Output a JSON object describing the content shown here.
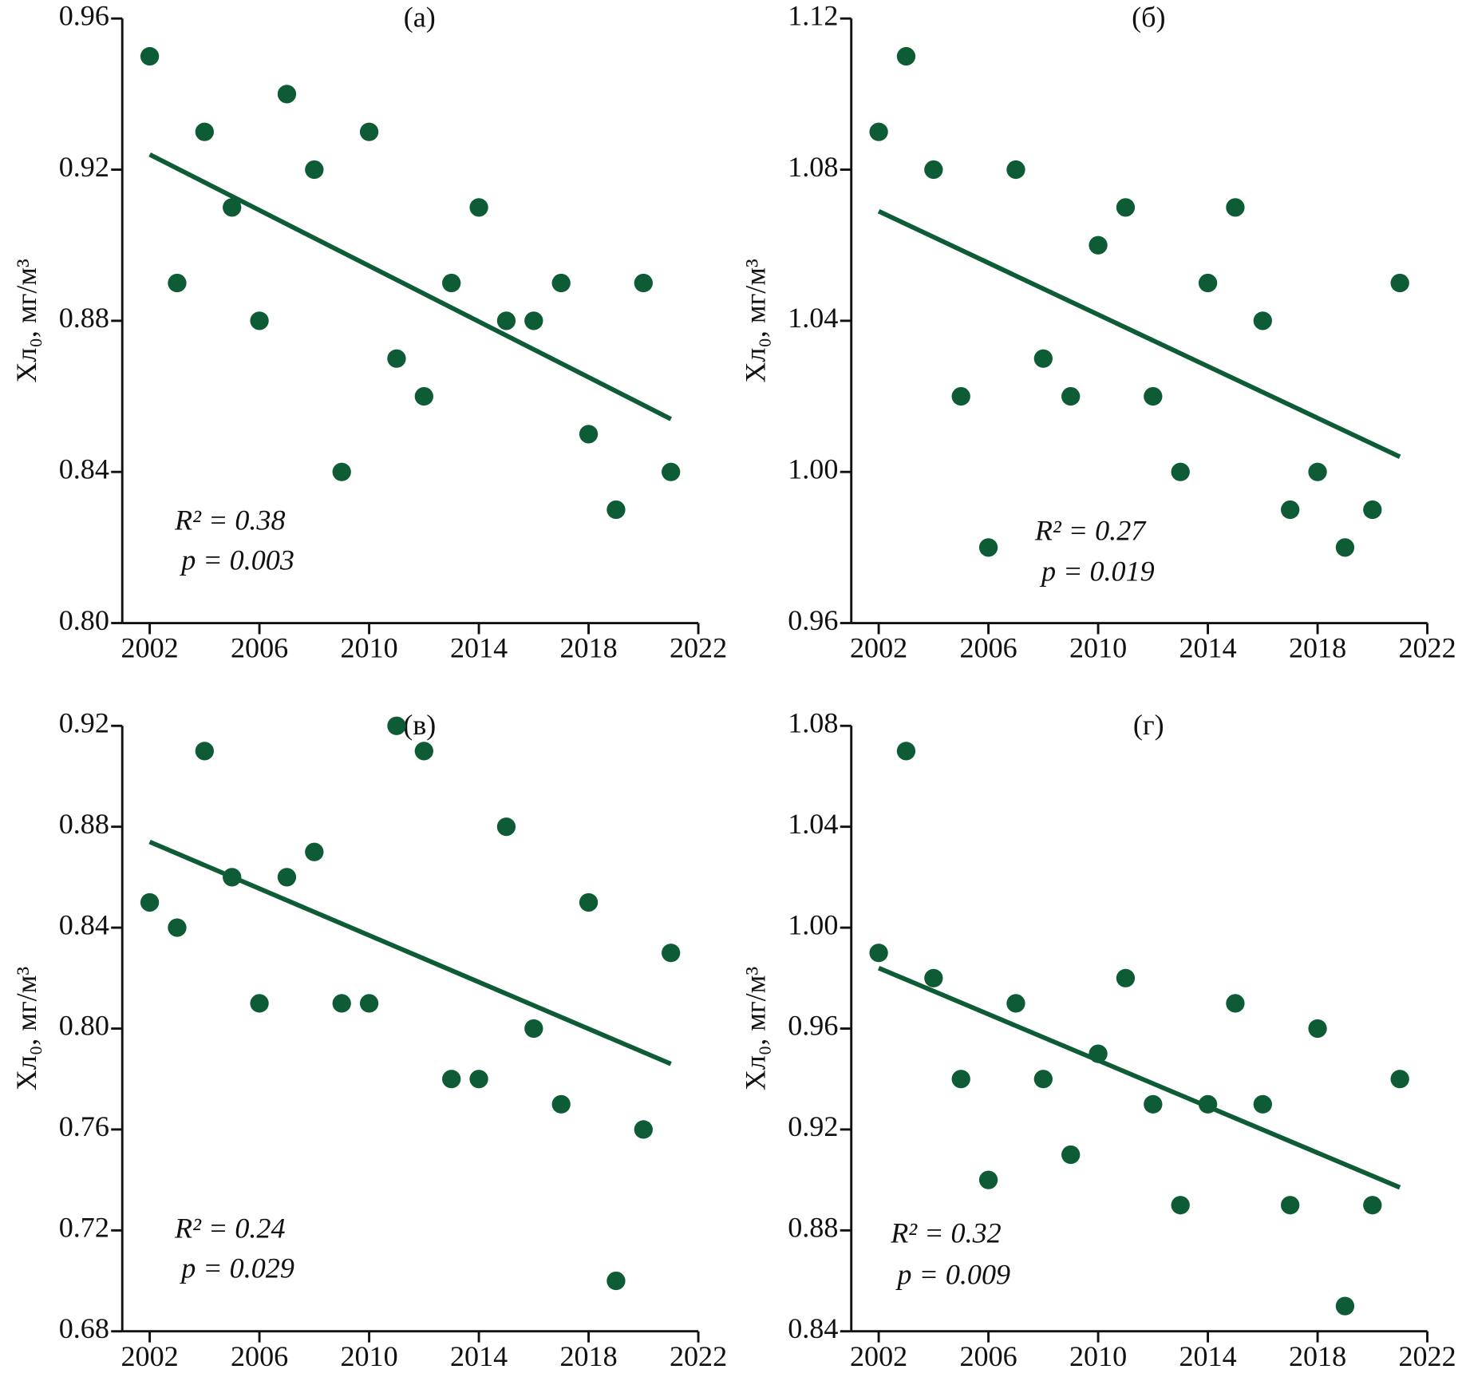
{
  "chart_data": [
    {
      "type": "scatter",
      "title": "(а)",
      "y_label": "Хл₀, мг/м³",
      "color": "#0d5c36",
      "x": [
        2002,
        2003,
        2004,
        2005,
        2006,
        2007,
        2008,
        2009,
        2010,
        2011,
        2012,
        2013,
        2014,
        2015,
        2016,
        2017,
        2018,
        2019,
        2020,
        2021
      ],
      "values": [
        0.95,
        0.89,
        0.93,
        0.91,
        0.88,
        0.94,
        0.92,
        0.84,
        0.93,
        0.87,
        0.86,
        0.89,
        0.91,
        0.88,
        0.88,
        0.89,
        0.85,
        0.83,
        0.89,
        0.84
      ],
      "trend": {
        "x": [
          2002,
          2021
        ],
        "values": [
          0.924,
          0.854
        ]
      },
      "r2": "R² = 0.38",
      "p": "p = 0.003",
      "xlim": [
        2001,
        2022
      ],
      "xticks": [
        2002,
        2006,
        2010,
        2014,
        2018,
        2022
      ],
      "ylim": [
        0.8,
        0.96
      ],
      "yticks": [
        {
          "value": 0.8,
          "label": "0.80"
        },
        0.84,
        0.88,
        0.92,
        0.96
      ]
    },
    {
      "type": "scatter",
      "title": "(б)",
      "y_label": "Хл₀, мг/м³",
      "color": "#0d5c36",
      "x": [
        2002,
        2003,
        2004,
        2005,
        2006,
        2007,
        2008,
        2009,
        2010,
        2011,
        2012,
        2013,
        2014,
        2015,
        2016,
        2017,
        2018,
        2019,
        2020,
        2021
      ],
      "values": [
        1.09,
        1.11,
        1.08,
        1.02,
        0.98,
        1.08,
        1.03,
        1.02,
        1.06,
        1.07,
        1.02,
        1.0,
        1.05,
        1.07,
        1.04,
        0.99,
        1.0,
        0.98,
        0.99,
        1.05
      ],
      "trend": {
        "x": [
          2002,
          2021
        ],
        "values": [
          1.069,
          1.004
        ]
      },
      "r2": "R² = 0.27",
      "p": "p = 0.019",
      "xlim": [
        2001,
        2022
      ],
      "xticks": [
        2002,
        2006,
        2010,
        2014,
        2018,
        2022
      ],
      "ylim": [
        0.96,
        1.12
      ],
      "yticks": [
        0.96,
        {
          "value": 1.0,
          "label": "1.00"
        },
        1.04,
        1.08,
        1.12
      ]
    },
    {
      "type": "scatter",
      "title": "(в)",
      "y_label": "Хл₀, мг/м³",
      "color": "#0d5c36",
      "x": [
        2002,
        2003,
        2004,
        2005,
        2006,
        2007,
        2008,
        2009,
        2010,
        2011,
        2012,
        2013,
        2014,
        2015,
        2016,
        2017,
        2018,
        2019,
        2020,
        2021
      ],
      "values": [
        0.85,
        0.84,
        0.91,
        0.86,
        0.81,
        0.86,
        0.87,
        0.81,
        0.81,
        0.92,
        0.91,
        0.78,
        0.78,
        0.88,
        0.8,
        0.77,
        0.85,
        0.7,
        0.76,
        0.83
      ],
      "trend": {
        "x": [
          2002,
          2021
        ],
        "values": [
          0.874,
          0.786
        ]
      },
      "r2": "R² = 0.24",
      "p": "p = 0.029",
      "xlim": [
        2001,
        2022
      ],
      "xticks": [
        2002,
        2006,
        2010,
        2014,
        2018,
        2022
      ],
      "ylim": [
        0.68,
        0.92
      ],
      "yticks": [
        0.68,
        0.72,
        0.76,
        {
          "value": 0.8,
          "label": "0.80"
        },
        0.84,
        0.88,
        0.92
      ]
    },
    {
      "type": "scatter",
      "title": "(г)",
      "y_label": "Хл₀, мг/м³",
      "color": "#0d5c36",
      "x": [
        2002,
        2003,
        2004,
        2005,
        2006,
        2007,
        2008,
        2009,
        2010,
        2011,
        2012,
        2013,
        2014,
        2015,
        2016,
        2017,
        2018,
        2019,
        2020,
        2021
      ],
      "values": [
        0.99,
        1.07,
        0.98,
        0.94,
        0.9,
        0.97,
        0.94,
        0.91,
        0.95,
        0.98,
        0.93,
        0.89,
        0.93,
        0.97,
        0.93,
        0.89,
        0.96,
        0.85,
        0.89,
        0.94
      ],
      "trend": {
        "x": [
          2002,
          2021
        ],
        "values": [
          0.984,
          0.897
        ]
      },
      "r2": "R² = 0.32",
      "p": "p = 0.009",
      "xlim": [
        2001,
        2022
      ],
      "xticks": [
        2002,
        2006,
        2010,
        2014,
        2018,
        2022
      ],
      "ylim": [
        0.84,
        1.08
      ],
      "yticks": [
        0.84,
        0.88,
        0.92,
        0.96,
        {
          "value": 1.0,
          "label": "1.00"
        },
        1.04,
        1.08
      ]
    }
  ]
}
